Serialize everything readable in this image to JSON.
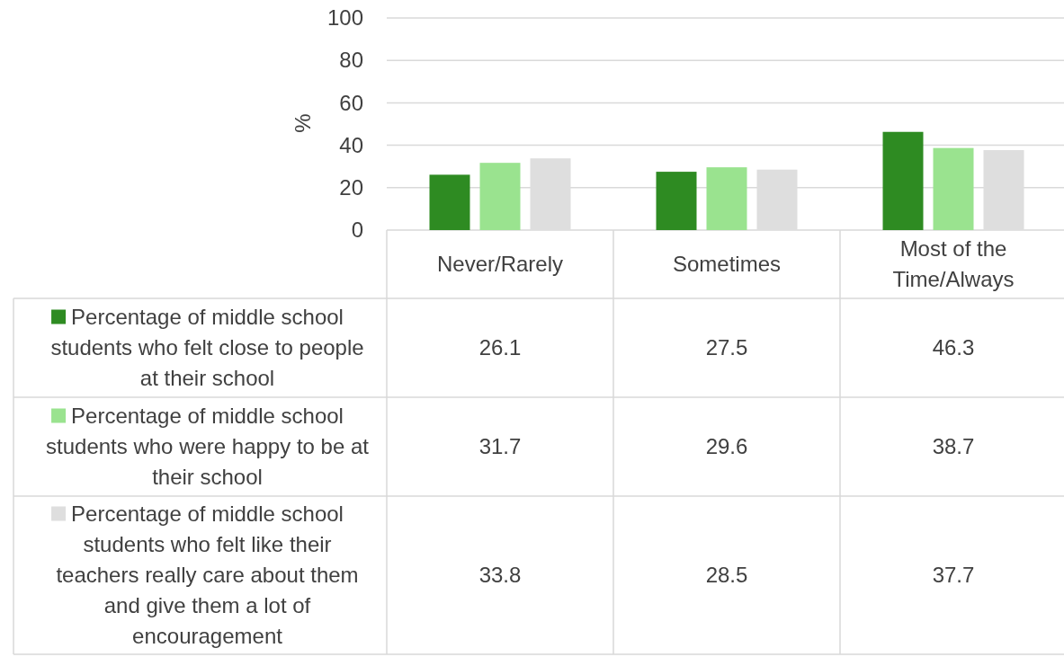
{
  "chart_data": {
    "type": "bar",
    "ylabel": "%",
    "categories": [
      "Never/Rarely",
      "Sometimes",
      "Most of the Time/Always"
    ],
    "series": [
      {
        "name": "Percentage of middle school students who felt close to people at their school",
        "color": "#2e8b22",
        "values": [
          26.1,
          27.5,
          46.3
        ]
      },
      {
        "name": "Percentage of middle school students who were happy to be at their school",
        "color": "#9ae38f",
        "values": [
          31.7,
          29.6,
          38.7
        ]
      },
      {
        "name": "Percentage of middle school students who felt like their teachers really care about them and give them a lot of encouragement",
        "color": "#dedede",
        "values": [
          33.8,
          28.5,
          37.7
        ]
      }
    ],
    "ylim": [
      0,
      100
    ],
    "yticks": [
      0,
      20,
      40,
      60,
      80,
      100
    ],
    "grid": "y",
    "legend": "bottom",
    "data_labels": true
  }
}
